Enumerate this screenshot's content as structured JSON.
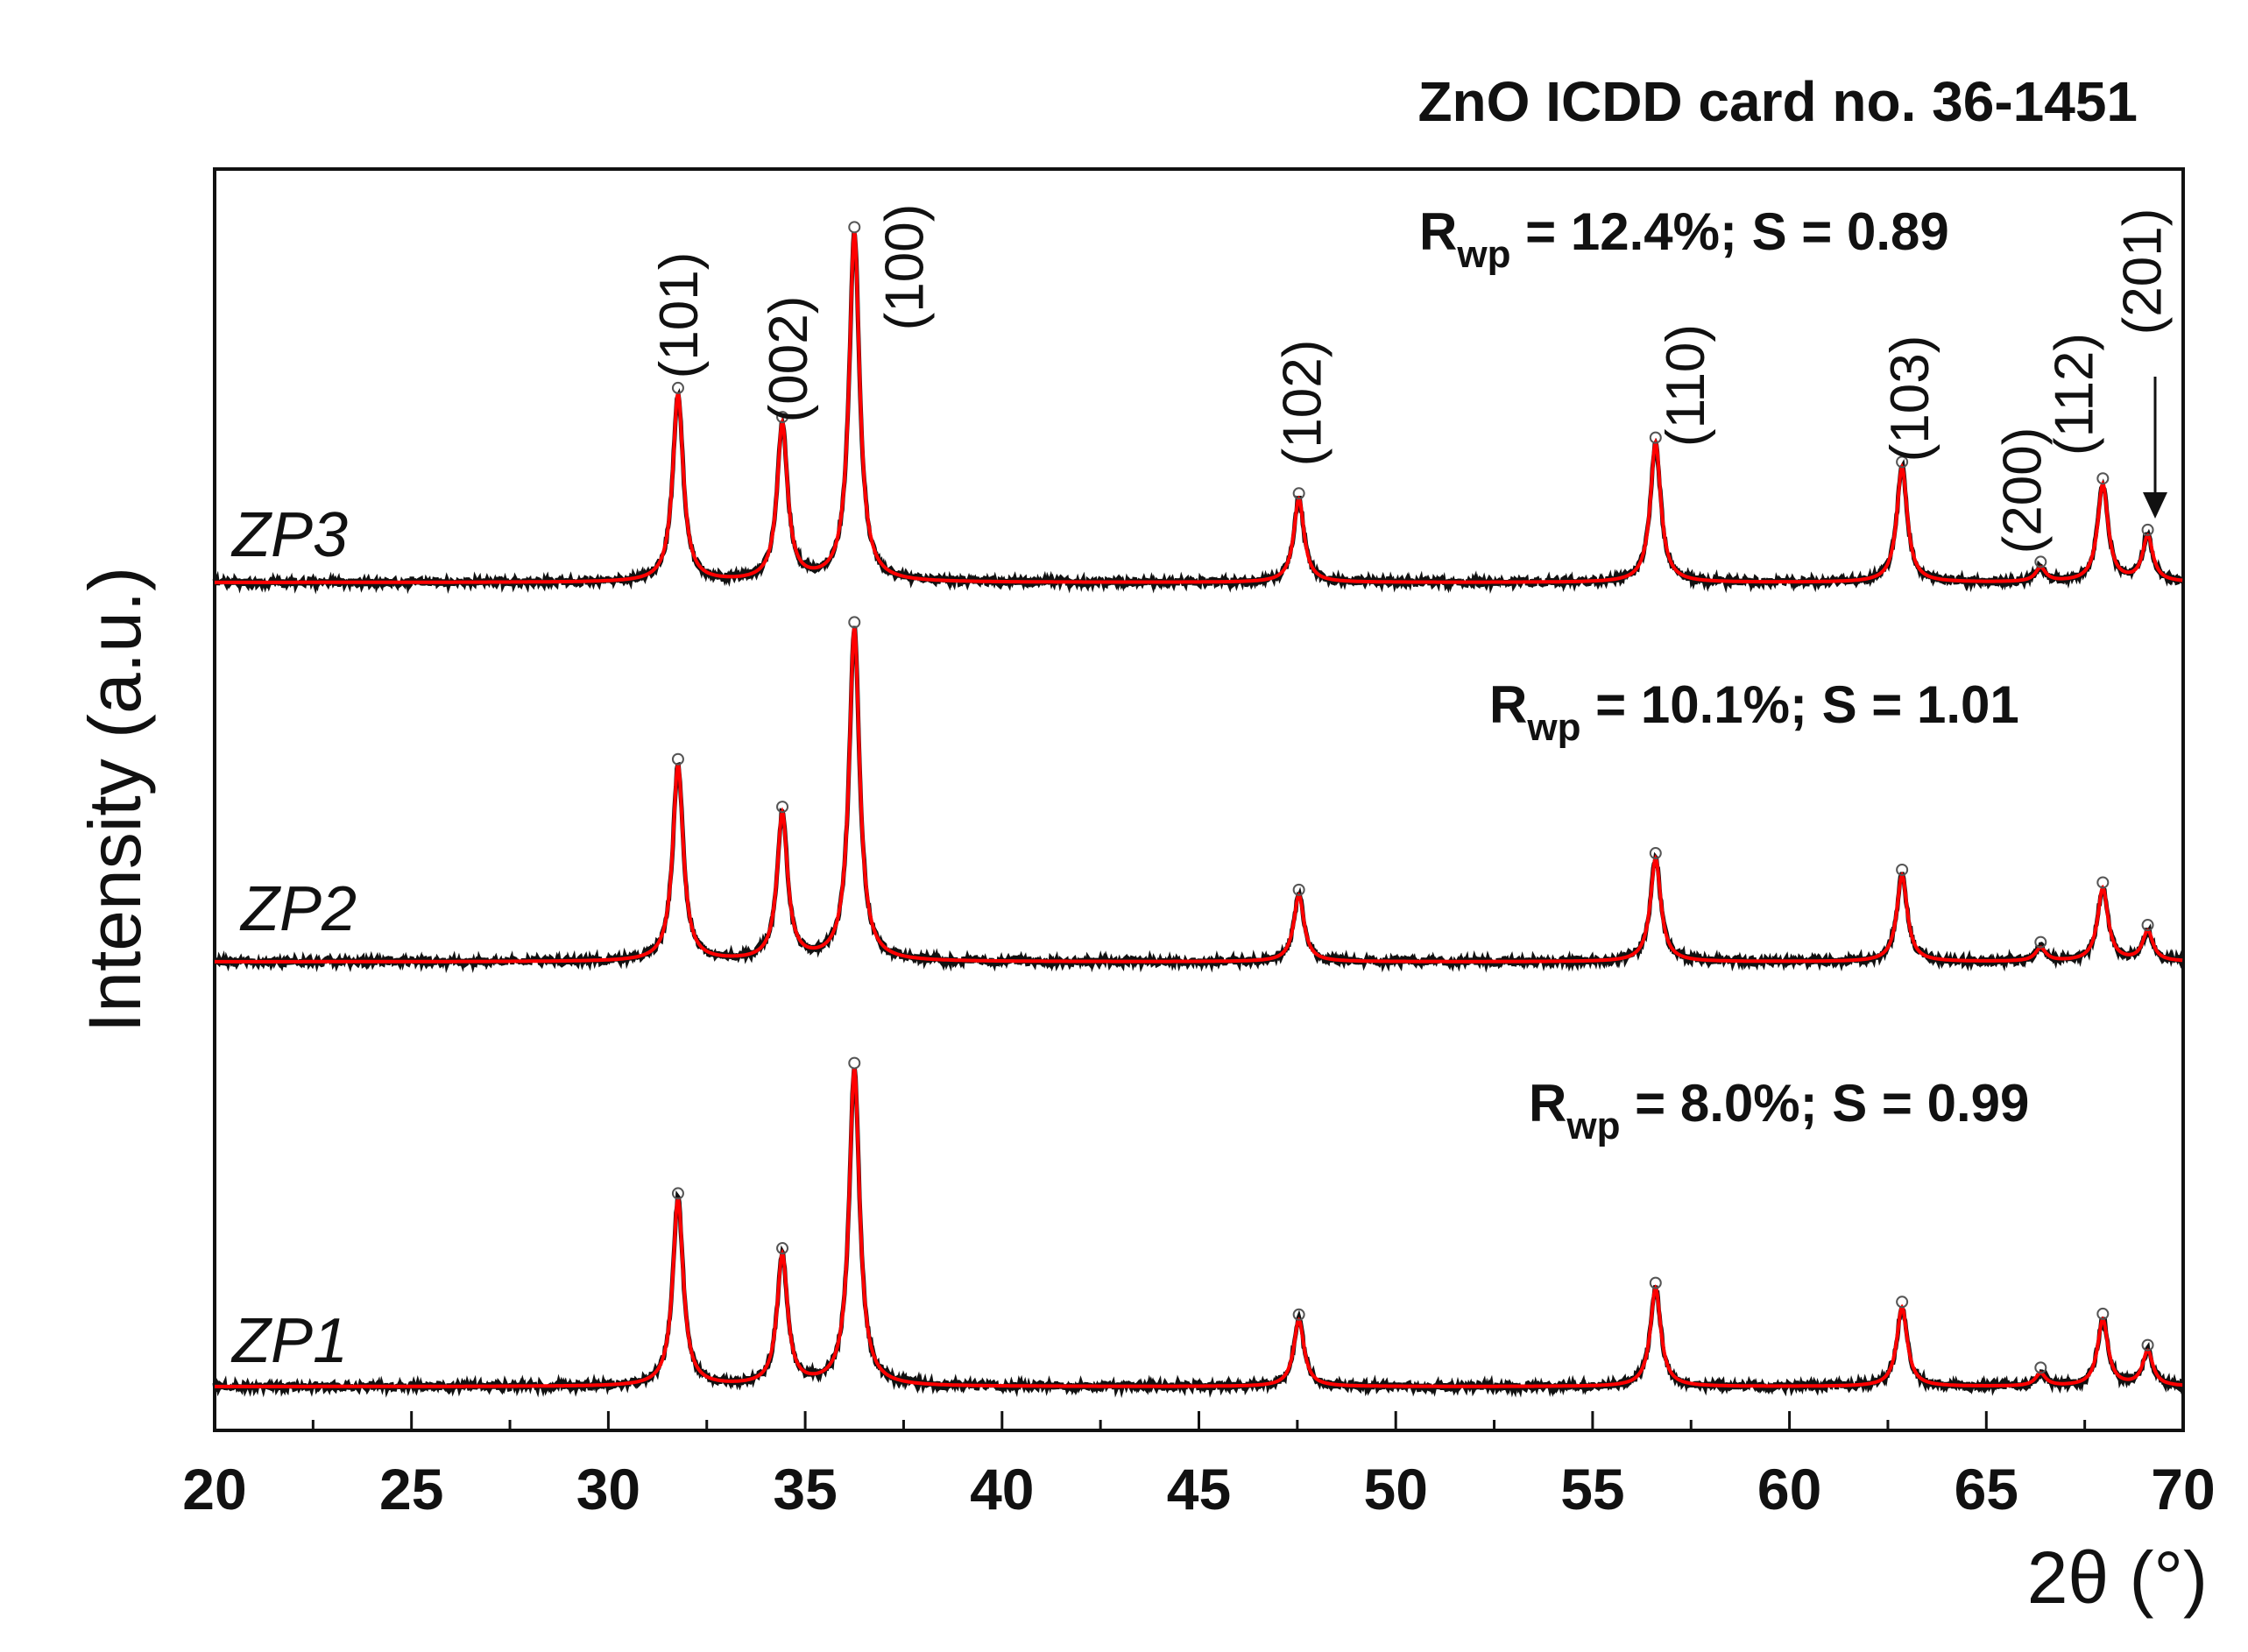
{
  "chart_data": {
    "type": "line",
    "title": "ZnO ICDD card no. 36-1451",
    "xlabel": "2θ (°)",
    "ylabel": "Intensity (a.u.)",
    "xlim": [
      20,
      70
    ],
    "xticks": [
      20,
      25,
      30,
      35,
      40,
      45,
      50,
      55,
      60,
      65,
      70
    ],
    "colors": {
      "observed": "#111111",
      "calculated": "#ff0000",
      "axis": "#111111"
    },
    "reflections": [
      {
        "hkl": "(101)",
        "two_theta": 31.77
      },
      {
        "hkl": "(002)",
        "two_theta": 34.42
      },
      {
        "hkl": "(100)",
        "two_theta": 36.25
      },
      {
        "hkl": "(102)",
        "two_theta": 47.54
      },
      {
        "hkl": "(110)",
        "two_theta": 56.6
      },
      {
        "hkl": "(103)",
        "two_theta": 62.86
      },
      {
        "hkl": "(200)",
        "two_theta": 66.38
      },
      {
        "hkl": "(112)",
        "two_theta": 67.96
      },
      {
        "hkl": "(201)",
        "two_theta": 69.1
      }
    ],
    "peak_width_deg": 0.16,
    "series": [
      {
        "name": "ZP3",
        "rwp_label": "R",
        "rwp_sub": "wp",
        "rwp_text": " = 12.4%; S = 0.89",
        "relative_intensities": [
          0.54,
          0.45,
          1.0,
          0.24,
          0.4,
          0.33,
          0.04,
          0.28,
          0.13
        ]
      },
      {
        "name": "ZP2",
        "rwp_label": "R",
        "rwp_sub": "wp",
        "rwp_text": " = 10.1%; S = 1.01",
        "relative_intensities": [
          0.59,
          0.44,
          1.0,
          0.2,
          0.31,
          0.26,
          0.04,
          0.22,
          0.09
        ]
      },
      {
        "name": "ZP1",
        "rwp_label": "R",
        "rwp_sub": "wp",
        "rwp_text": " = 8.0%; S = 0.99",
        "relative_intensities": [
          0.59,
          0.41,
          1.0,
          0.21,
          0.31,
          0.25,
          0.04,
          0.21,
          0.11
        ]
      }
    ]
  }
}
